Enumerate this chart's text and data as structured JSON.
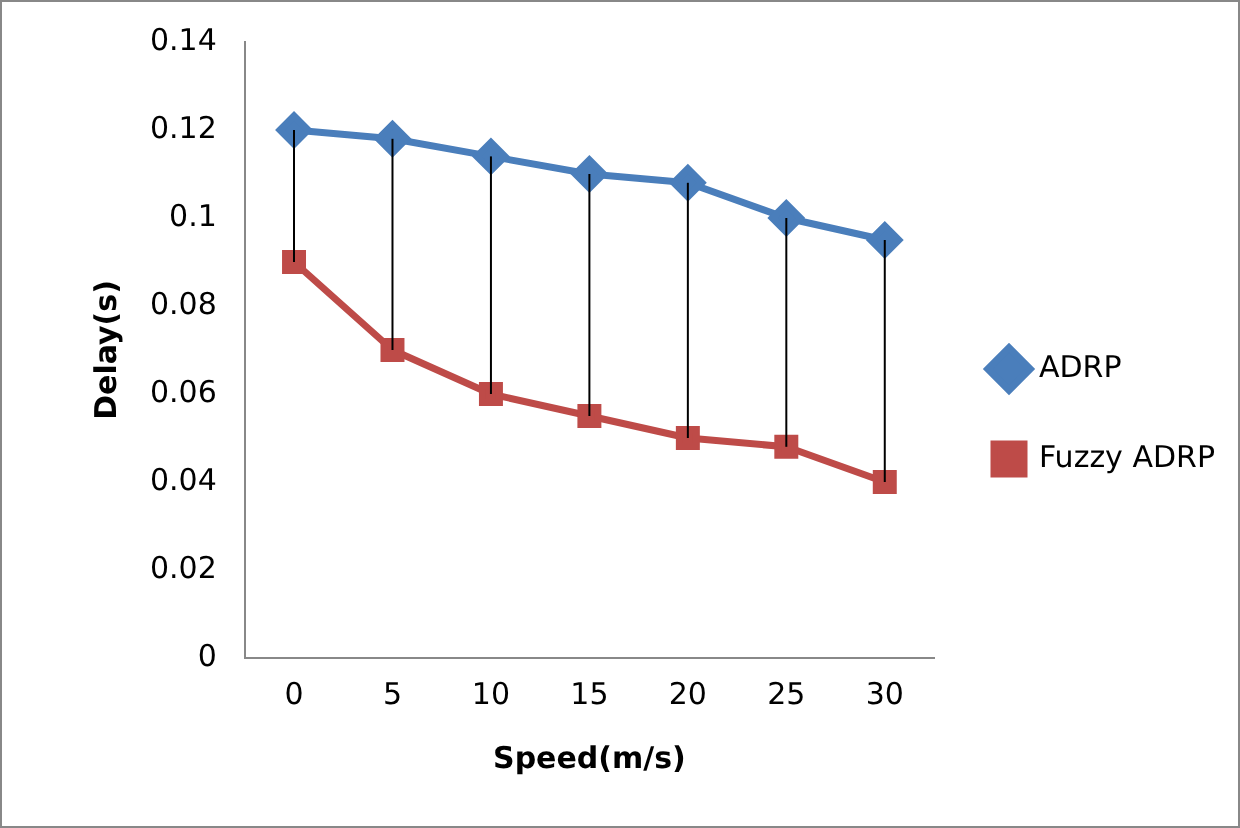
{
  "chart_data": {
    "type": "line",
    "xlabel": "Speed(m/s)",
    "ylabel": "Delay(s)",
    "categories": [
      "0",
      "5",
      "10",
      "15",
      "20",
      "25",
      "30"
    ],
    "series": [
      {
        "name": "ADRP",
        "color": "#4a7ebb",
        "marker": "diamond",
        "values": [
          0.12,
          0.118,
          0.114,
          0.11,
          0.108,
          0.1,
          0.095
        ],
        "errors": [
          [
            0.09,
            0.12
          ],
          [
            0.07,
            0.118
          ],
          [
            0.06,
            0.114
          ],
          [
            0.055,
            0.11
          ],
          [
            0.05,
            0.108
          ],
          [
            0.048,
            0.1
          ],
          [
            0.04,
            0.095
          ]
        ]
      },
      {
        "name": "Fuzzy ADRP",
        "color": "#be4b48",
        "marker": "square",
        "values": [
          0.09,
          0.07,
          0.06,
          0.055,
          0.05,
          0.048,
          0.04
        ]
      }
    ],
    "ylim": [
      0,
      0.14
    ],
    "yticks": [
      0,
      0.02,
      0.04,
      0.06,
      0.08,
      0.1,
      0.12,
      0.14
    ],
    "grid": false,
    "legend": "right",
    "line_style": "solid"
  }
}
